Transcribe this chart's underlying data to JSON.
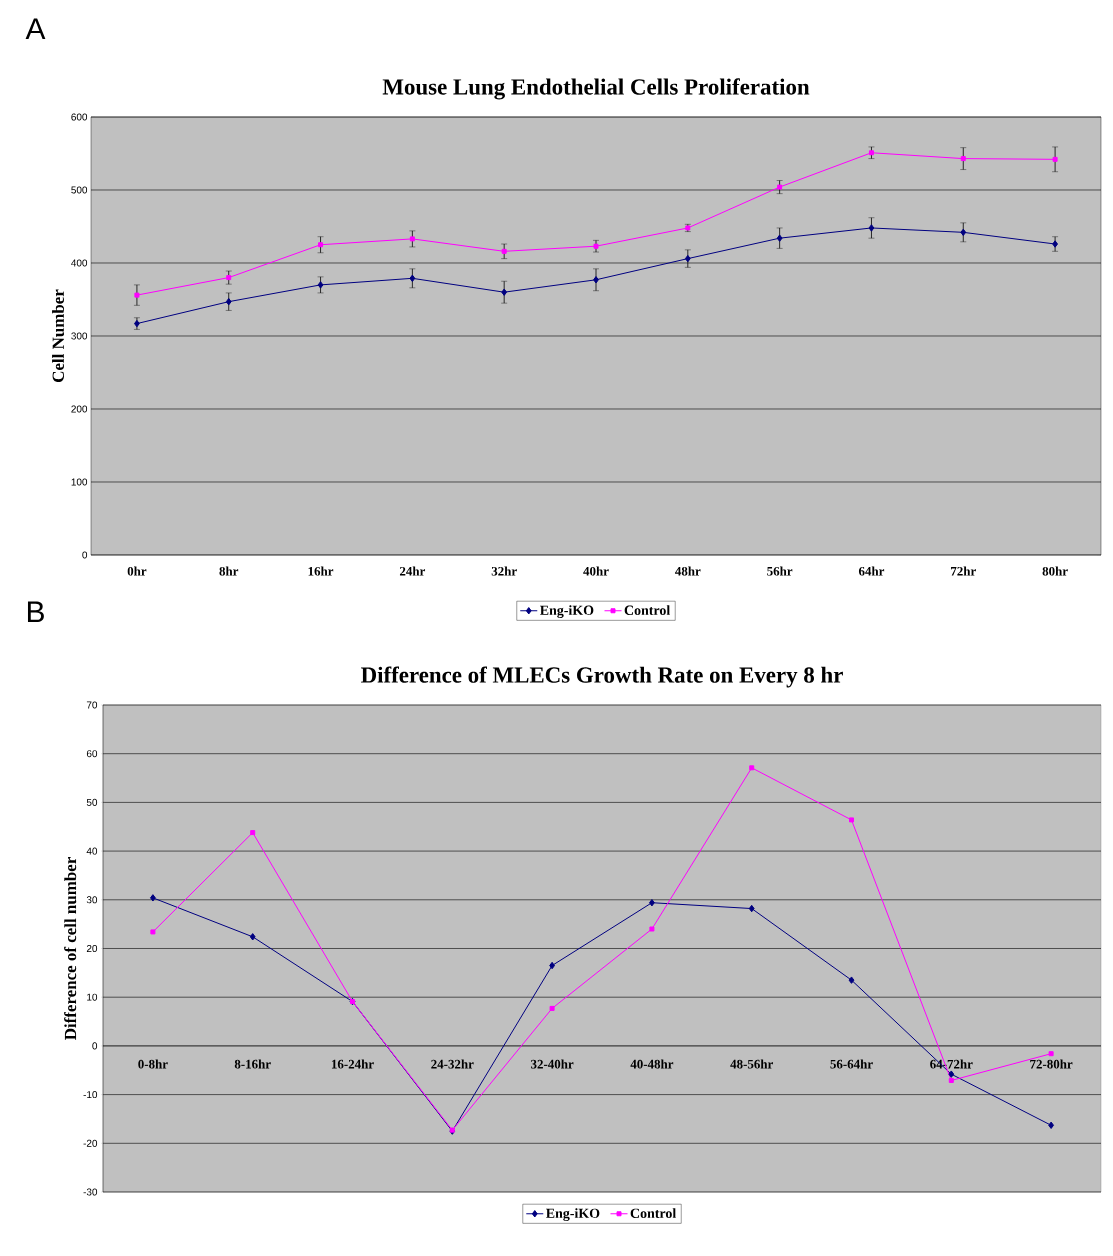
{
  "chart_data": [
    {
      "type": "line",
      "title": "Mouse Lung Endothelial Cells Proliferation",
      "ylabel": "Cell Number",
      "annotations": [
        "A"
      ],
      "categories": [
        "0hr",
        "8hr",
        "16hr",
        "24hr",
        "32hr",
        "40hr",
        "48hr",
        "56hr",
        "64hr",
        "72hr",
        "80hr"
      ],
      "ylim": [
        0,
        600
      ],
      "yticks": [
        0,
        100,
        200,
        300,
        400,
        500,
        600
      ],
      "grid": "y",
      "legend": "bottom",
      "series": [
        {
          "name": "Eng-iKO",
          "color": "#000080",
          "marker": "diamond",
          "values": [
            317,
            347,
            370,
            379,
            360,
            377,
            406,
            434,
            448,
            442,
            426
          ],
          "errors": [
            8,
            12,
            11,
            13,
            15,
            15,
            12,
            14,
            14,
            13,
            10
          ]
        },
        {
          "name": "Control",
          "color": "#ff00ff",
          "marker": "square",
          "values": [
            356,
            380,
            425,
            433,
            416,
            423,
            448,
            504,
            551,
            543,
            542
          ],
          "errors": [
            14,
            9,
            11,
            11,
            10,
            8,
            5,
            9,
            8,
            15,
            17
          ]
        }
      ]
    },
    {
      "type": "line",
      "title": "Difference of MLECs Growth Rate on Every 8 hr",
      "ylabel": "Difference of cell number",
      "annotations": [
        "B"
      ],
      "categories": [
        "0-8hr",
        "8-16hr",
        "16-24hr",
        "24-32hr",
        "32-40hr",
        "40-48hr",
        "48-56hr",
        "56-64hr",
        "64-72hr",
        "72-80hr"
      ],
      "ylim": [
        -30,
        70
      ],
      "yticks": [
        -30,
        -20,
        -10,
        0,
        10,
        20,
        30,
        40,
        50,
        60,
        70
      ],
      "grid": "y",
      "legend": "bottom",
      "series": [
        {
          "name": "Eng-iKO",
          "color": "#000080",
          "marker": "diamond",
          "values": [
            30.4,
            22.4,
            9.1,
            -17.5,
            16.5,
            29.4,
            28.2,
            13.5,
            -5.8,
            -16.3
          ]
        },
        {
          "name": "Control",
          "color": "#ff00ff",
          "marker": "square",
          "values": [
            23.4,
            43.8,
            9.1,
            -17.3,
            7.7,
            24.0,
            57.1,
            46.4,
            -7.1,
            -1.6
          ]
        }
      ]
    }
  ]
}
